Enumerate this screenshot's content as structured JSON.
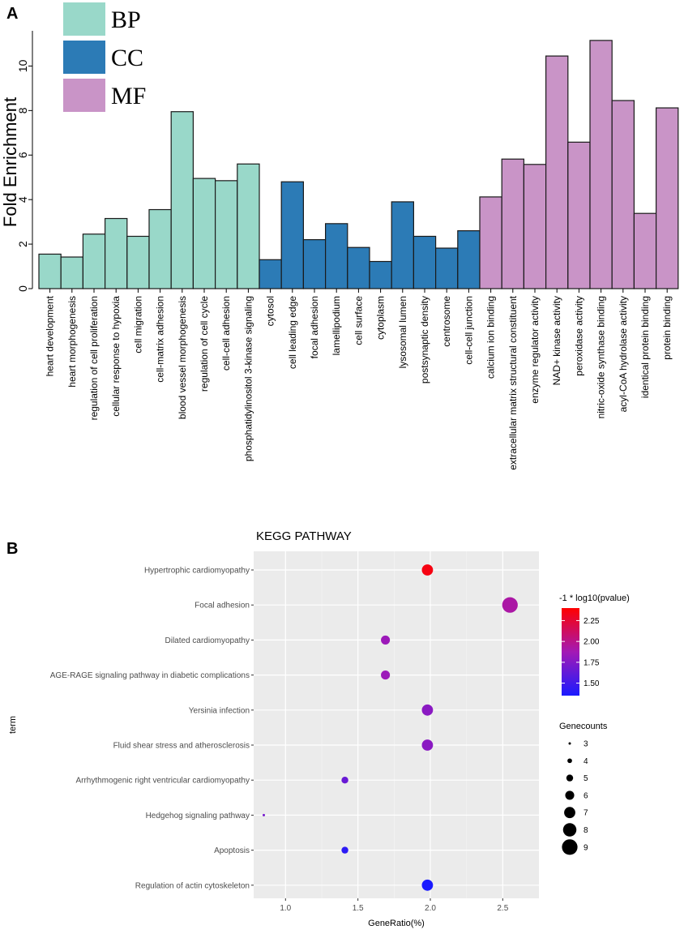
{
  "panels": {
    "a_letter": "A",
    "b_letter": "B"
  },
  "chart_data": [
    {
      "type": "bar",
      "title": "",
      "ylabel": "Fold Enrichment",
      "xlabel": "",
      "ylim": [
        0,
        11.4
      ],
      "yticks": [
        0,
        2,
        4,
        6,
        8,
        10
      ],
      "legend": [
        {
          "name": "BP",
          "color": "#99d8c9"
        },
        {
          "name": "CC",
          "color": "#2c7bb6"
        },
        {
          "name": "MF",
          "color": "#c994c7"
        }
      ],
      "categories": [
        "heart development",
        "heart morphogenesis",
        "regulation of cell proliferation",
        "cellular response to hypoxia",
        "cell migration",
        "cell-matrix adhesion",
        "blood vessel morphogenesis",
        "regulation of cell cycle",
        "cell-cell adhesion",
        "phosphatidylinositol 3-kinase signaling",
        "cytosol",
        "cell leading edge",
        "focal adhesion",
        "lamellipodium",
        "cell surface",
        "cytoplasm",
        "lysosomal lumen",
        "postsynaptic density",
        "centrosome",
        "cell-cell junction",
        "calcium ion binding",
        "extracellular matrix structural constituent",
        "enzyme regulator activity",
        "NAD+ kinase activity",
        "peroxidase activity",
        "nitric-oxide synthase binding",
        "acyl-CoA hydrolase activity",
        "identical protein binding",
        "protein binding"
      ],
      "groups": [
        "BP",
        "BP",
        "BP",
        "BP",
        "BP",
        "BP",
        "BP",
        "BP",
        "BP",
        "BP",
        "CC",
        "CC",
        "CC",
        "CC",
        "CC",
        "CC",
        "CC",
        "CC",
        "CC",
        "CC",
        "MF",
        "MF",
        "MF",
        "MF",
        "MF",
        "MF",
        "MF",
        "MF",
        "MF"
      ],
      "values": [
        1.55,
        1.42,
        2.45,
        3.15,
        2.35,
        3.55,
        7.95,
        4.95,
        4.85,
        5.6,
        1.3,
        4.8,
        2.2,
        2.92,
        1.85,
        1.22,
        3.9,
        2.35,
        1.82,
        2.6,
        4.12,
        5.82,
        5.58,
        10.45,
        6.58,
        11.15,
        8.45,
        3.38,
        8.12
      ]
    },
    {
      "type": "scatter",
      "title": "KEGG PATHWAY",
      "xlabel": "GeneRatio(%)",
      "ylabel": "term",
      "xlim": [
        0.78,
        2.75
      ],
      "xticks": [
        1.0,
        1.5,
        2.0,
        2.5
      ],
      "xtick_labels": [
        "1.0",
        "1.5",
        "2.0",
        "2.5"
      ],
      "terms": [
        "Hypertrophic cardiomyopathy",
        "Focal adhesion",
        "Dilated cardiomyopathy",
        "AGE-RAGE signaling pathway in diabetic complications",
        "Yersinia infection",
        "Fluid shear stress and atherosclerosis",
        "Arrhythmogenic right ventricular cardiomyopathy",
        "Hedgehog signaling pathway",
        "Apoptosis",
        "Regulation of actin cytoskeleton"
      ],
      "gene_ratio": [
        1.98,
        2.55,
        1.69,
        1.69,
        1.98,
        1.98,
        1.41,
        0.85,
        1.41,
        1.98
      ],
      "neg_log10_pvalue": [
        2.35,
        1.92,
        1.85,
        1.85,
        1.78,
        1.78,
        1.65,
        1.7,
        1.42,
        1.35
      ],
      "gene_counts": [
        7,
        9,
        6,
        6,
        7,
        7,
        5,
        3,
        5,
        7
      ],
      "color_legend": {
        "title": "-1 * log10(pvalue)",
        "ticks": [
          "2.25",
          "2.00",
          "1.75",
          "1.50"
        ],
        "range": [
          1.35,
          2.4
        ],
        "low_color": "#1a1aff",
        "high_color": "#ff0000"
      },
      "size_legend": {
        "title": "Genecounts",
        "values": [
          "3",
          "4",
          "5",
          "6",
          "7",
          "8",
          "9"
        ]
      }
    }
  ]
}
